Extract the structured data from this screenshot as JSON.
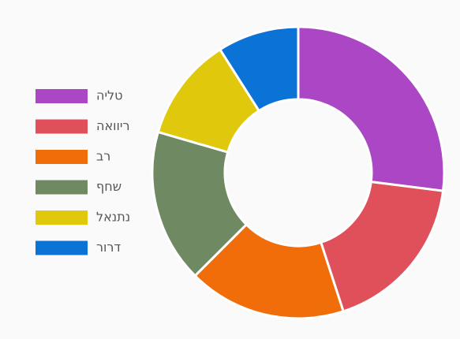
{
  "chart_data": {
    "type": "donut",
    "categories": [
      "טליה",
      "ריוואה",
      "רב",
      "שחף",
      "נתנאל",
      "דרור"
    ],
    "values": [
      27,
      18,
      17.5,
      17,
      11.5,
      9
    ],
    "colors": [
      "#ab47c4",
      "#e0505a",
      "#f06d0a",
      "#6f8a62",
      "#e0c80c",
      "#0b72d6"
    ],
    "legend": "left"
  }
}
